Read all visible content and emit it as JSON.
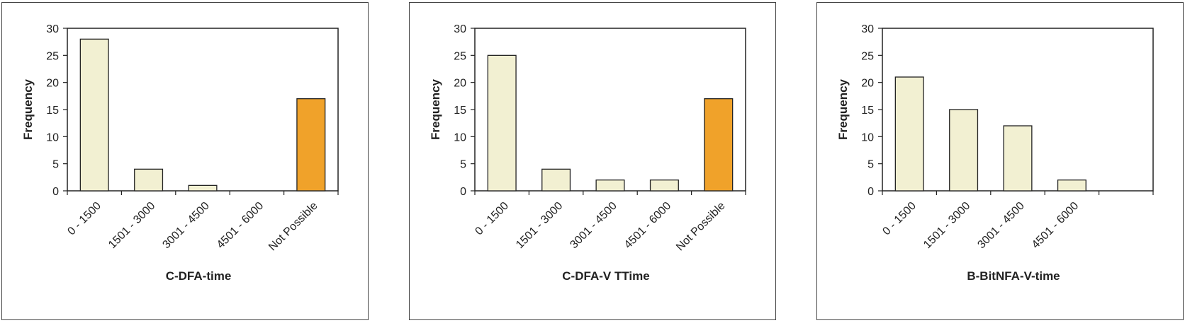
{
  "chart_data": [
    {
      "type": "bar",
      "categories": [
        "0 - 1500",
        "1501 - 3000",
        "3001 - 4500",
        "4501 - 6000",
        "Not Possible"
      ],
      "values": [
        28,
        4,
        1,
        0,
        17
      ],
      "bar_colors": [
        "#f2f0d2",
        "#f2f0d2",
        "#f2f0d2",
        "#f2f0d2",
        "#f0a22a"
      ],
      "xlabel": "C-DFA-time",
      "ylabel": "Frequency",
      "ylim": [
        0,
        30
      ],
      "yticks": [
        0,
        5,
        10,
        15,
        20,
        25,
        30
      ],
      "grid": false
    },
    {
      "type": "bar",
      "categories": [
        "0 - 1500",
        "1501 - 3000",
        "3001 - 4500",
        "4501 - 6000",
        "Not Possible"
      ],
      "values": [
        25,
        4,
        2,
        2,
        17
      ],
      "bar_colors": [
        "#f2f0d2",
        "#f2f0d2",
        "#f2f0d2",
        "#f2f0d2",
        "#f0a22a"
      ],
      "xlabel": "C-DFA-V TTime",
      "ylabel": "Frequency",
      "ylim": [
        0,
        30
      ],
      "yticks": [
        0,
        5,
        10,
        15,
        20,
        25,
        30
      ],
      "grid": false
    },
    {
      "type": "bar",
      "categories": [
        "0 - 1500",
        "1501 - 3000",
        "3001 - 4500",
        "4501 - 6000",
        ""
      ],
      "values": [
        21,
        15,
        12,
        2,
        0
      ],
      "bar_colors": [
        "#f2f0d2",
        "#f2f0d2",
        "#f2f0d2",
        "#f2f0d2",
        "#f2f0d2"
      ],
      "xlabel": "B-BitNFA-V-time",
      "ylabel": "Frequency",
      "ylim": [
        0,
        30
      ],
      "yticks": [
        0,
        5,
        10,
        15,
        20,
        25,
        30
      ],
      "grid": false
    }
  ]
}
